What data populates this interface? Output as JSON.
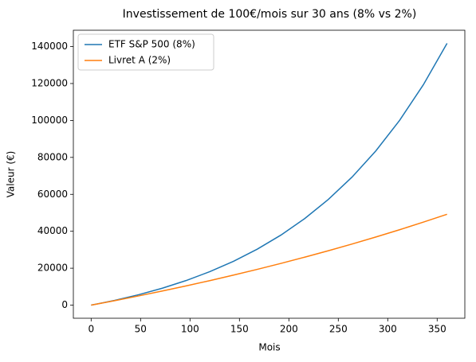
{
  "chart_data": {
    "type": "line",
    "title": "Investissement de 100€/mois sur 30 ans (8% vs 2%)",
    "x_label": "Mois",
    "y_label": "Valeur (€)",
    "x": [
      0,
      24,
      48,
      72,
      96,
      120,
      144,
      168,
      192,
      216,
      240,
      264,
      288,
      312,
      336,
      360
    ],
    "series": [
      {
        "name": "ETF S&P 500 (8%)",
        "color": "#1f77b4",
        "values": [
          0,
          2603,
          5639,
          9180,
          13311,
          18128,
          23748,
          30302,
          37948,
          46865,
          57266,
          69398,
          83549,
          100054,
          119306,
          141762
        ]
      },
      {
        "name": "Livret A (2%)",
        "color": "#ff7f0e",
        "values": [
          0,
          2450,
          4999,
          7651,
          10411,
          13281,
          16268,
          19376,
          22609,
          25973,
          29472,
          33113,
          36901,
          40842,
          44942,
          49208
        ]
      }
    ],
    "xlim": [
      -18,
      378
    ],
    "ylim": [
      -7088,
      148850
    ],
    "xticks": [
      0,
      50,
      100,
      150,
      200,
      250,
      300,
      350
    ],
    "yticks": [
      0,
      20000,
      40000,
      60000,
      80000,
      100000,
      120000,
      140000
    ],
    "legend": "upper left"
  }
}
